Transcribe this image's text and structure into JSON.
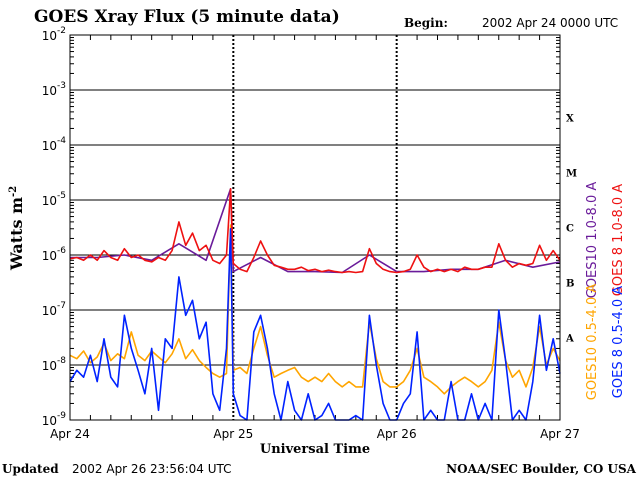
{
  "chart_data": {
    "type": "line",
    "title": "GOES Xray Flux (5 minute data)",
    "begin_label": "Begin:",
    "begin_value": "2002 Apr 24 0000 UTC",
    "ylabel": "Watts m",
    "ylabel_exp": "-2",
    "xlabel": "Universal Time",
    "yscale": "log",
    "ylim": [
      1e-09,
      0.01
    ],
    "y_ticks": [
      {
        "base": "10",
        "exp": "-2",
        "value": 0.01
      },
      {
        "base": "10",
        "exp": "-3",
        "value": 0.001
      },
      {
        "base": "10",
        "exp": "-4",
        "value": 0.0001
      },
      {
        "base": "10",
        "exp": "-5",
        "value": 1e-05
      },
      {
        "base": "10",
        "exp": "-6",
        "value": 1e-06
      },
      {
        "base": "10",
        "exp": "-7",
        "value": 1e-07
      },
      {
        "base": "10",
        "exp": "-8",
        "value": 1e-08
      },
      {
        "base": "10",
        "exp": "-9",
        "value": 1e-09
      }
    ],
    "xlim": [
      0,
      72
    ],
    "x_ticks": [
      {
        "label": "Apr 24",
        "hours": 0
      },
      {
        "label": "Apr 25",
        "hours": 24
      },
      {
        "label": "Apr 26",
        "hours": 48
      },
      {
        "label": "Apr 27",
        "hours": 72
      }
    ],
    "flare_classes": [
      {
        "label": "X",
        "value": 0.000316
      },
      {
        "label": "M",
        "value": 3.16e-05
      },
      {
        "label": "C",
        "value": 3.16e-06
      },
      {
        "label": "B",
        "value": 3.16e-07
      },
      {
        "label": "A",
        "value": 3.16e-08
      }
    ],
    "grid": true,
    "series": [
      {
        "name": "GOES10 0.5-4.0 A",
        "color": "#ffa500",
        "points": [
          [
            0,
            1.5e-08
          ],
          [
            1,
            1.3e-08
          ],
          [
            2,
            1.8e-08
          ],
          [
            3,
            1.1e-08
          ],
          [
            4,
            1.4e-08
          ],
          [
            5,
            2.5e-08
          ],
          [
            6,
            1.2e-08
          ],
          [
            7,
            1.6e-08
          ],
          [
            8,
            1.3e-08
          ],
          [
            9,
            4e-08
          ],
          [
            10,
            1.5e-08
          ],
          [
            11,
            1.2e-08
          ],
          [
            12,
            1.8e-08
          ],
          [
            13,
            1.4e-08
          ],
          [
            14,
            1.1e-08
          ],
          [
            15,
            1.6e-08
          ],
          [
            16,
            3e-08
          ],
          [
            17,
            1.3e-08
          ],
          [
            18,
            1.9e-08
          ],
          [
            19,
            1.2e-08
          ],
          [
            20,
            9e-09
          ],
          [
            21,
            7e-09
          ],
          [
            22,
            6e-09
          ],
          [
            23,
            7e-09
          ],
          [
            23.6,
            3.5e-06
          ],
          [
            24,
            8e-09
          ],
          [
            25,
            9e-09
          ],
          [
            26,
            7e-09
          ],
          [
            27,
            2e-08
          ],
          [
            28,
            5e-08
          ],
          [
            29,
            1.5e-08
          ],
          [
            30,
            6e-09
          ],
          [
            31,
            7e-09
          ],
          [
            32,
            8e-09
          ],
          [
            33,
            9e-09
          ],
          [
            34,
            6e-09
          ],
          [
            35,
            5e-09
          ],
          [
            36,
            6e-09
          ],
          [
            37,
            5e-09
          ],
          [
            38,
            7e-09
          ],
          [
            39,
            5e-09
          ],
          [
            40,
            4e-09
          ],
          [
            41,
            5e-09
          ],
          [
            42,
            4e-09
          ],
          [
            43,
            4e-09
          ],
          [
            44,
            6e-08
          ],
          [
            45,
            1.3e-08
          ],
          [
            46,
            5e-09
          ],
          [
            47,
            4e-09
          ],
          [
            48,
            4e-09
          ],
          [
            49,
            5e-09
          ],
          [
            50,
            8e-09
          ],
          [
            51,
            2e-08
          ],
          [
            52,
            6e-09
          ],
          [
            53,
            5e-09
          ],
          [
            54,
            4e-09
          ],
          [
            55,
            3e-09
          ],
          [
            56,
            4e-09
          ],
          [
            57,
            5e-09
          ],
          [
            58,
            6e-09
          ],
          [
            59,
            5e-09
          ],
          [
            60,
            4e-09
          ],
          [
            61,
            5e-09
          ],
          [
            62,
            8e-09
          ],
          [
            63,
            6e-08
          ],
          [
            64,
            1.2e-08
          ],
          [
            65,
            6e-09
          ],
          [
            66,
            8e-09
          ],
          [
            67,
            4e-09
          ],
          [
            68,
            9e-09
          ],
          [
            69,
            5e-08
          ],
          [
            70,
            1e-08
          ],
          [
            71,
            2e-08
          ],
          [
            72,
            1.2e-08
          ]
        ]
      },
      {
        "name": "GOES 8 0.5-4.0 A",
        "color": "#0022ff",
        "points": [
          [
            0,
            5e-09
          ],
          [
            1,
            8e-09
          ],
          [
            2,
            6e-09
          ],
          [
            3,
            1.5e-08
          ],
          [
            4,
            5e-09
          ],
          [
            5,
            3e-08
          ],
          [
            6,
            6e-09
          ],
          [
            7,
            4e-09
          ],
          [
            8,
            8e-08
          ],
          [
            9,
            2e-08
          ],
          [
            10,
            8e-09
          ],
          [
            11,
            3e-09
          ],
          [
            12,
            2e-08
          ],
          [
            13,
            1.5e-09
          ],
          [
            14,
            3e-08
          ],
          [
            15,
            2e-08
          ],
          [
            16,
            4e-07
          ],
          [
            17,
            8e-08
          ],
          [
            18,
            1.5e-07
          ],
          [
            19,
            3e-08
          ],
          [
            20,
            6e-08
          ],
          [
            21,
            3e-09
          ],
          [
            22,
            1.5e-09
          ],
          [
            23,
            2e-08
          ],
          [
            23.6,
            3e-06
          ],
          [
            24,
            3e-09
          ],
          [
            25,
            1.2e-09
          ],
          [
            26,
            1e-09
          ],
          [
            27,
            4e-08
          ],
          [
            28,
            8e-08
          ],
          [
            29,
            2e-08
          ],
          [
            30,
            3e-09
          ],
          [
            31,
            1e-09
          ],
          [
            32,
            5e-09
          ],
          [
            33,
            1.5e-09
          ],
          [
            34,
            1e-09
          ],
          [
            35,
            3e-09
          ],
          [
            36,
            1e-09
          ],
          [
            37,
            1.2e-09
          ],
          [
            38,
            2e-09
          ],
          [
            39,
            1e-09
          ],
          [
            40,
            1e-09
          ],
          [
            41,
            1e-09
          ],
          [
            42,
            1.2e-09
          ],
          [
            43,
            1e-09
          ],
          [
            44,
            8e-08
          ],
          [
            45,
            1e-08
          ],
          [
            46,
            2e-09
          ],
          [
            47,
            1e-09
          ],
          [
            48,
            1e-09
          ],
          [
            49,
            2e-09
          ],
          [
            50,
            3e-09
          ],
          [
            51,
            4e-08
          ],
          [
            52,
            1e-09
          ],
          [
            53,
            1.5e-09
          ],
          [
            54,
            1e-09
          ],
          [
            55,
            1e-09
          ],
          [
            56,
            5e-09
          ],
          [
            57,
            1e-09
          ],
          [
            58,
            1e-09
          ],
          [
            59,
            3e-09
          ],
          [
            60,
            1e-09
          ],
          [
            61,
            2e-09
          ],
          [
            62,
            1e-09
          ],
          [
            63,
            1e-07
          ],
          [
            64,
            1.2e-08
          ],
          [
            65,
            1e-09
          ],
          [
            66,
            1.5e-09
          ],
          [
            67,
            1e-09
          ],
          [
            68,
            5e-09
          ],
          [
            69,
            8e-08
          ],
          [
            70,
            8e-09
          ],
          [
            71,
            3e-08
          ],
          [
            72,
            7e-09
          ]
        ]
      },
      {
        "name": "GOES10 1.0-8.0 A",
        "color": "#6a1b9a",
        "points": [
          [
            0,
            9e-07
          ],
          [
            4,
            9e-07
          ],
          [
            8,
            1e-06
          ],
          [
            12,
            8e-07
          ],
          [
            16,
            1.6e-06
          ],
          [
            20,
            8e-07
          ],
          [
            23.6,
            1.6e-05
          ],
          [
            24,
            5e-07
          ],
          [
            28,
            9e-07
          ],
          [
            32,
            5e-07
          ],
          [
            36,
            5e-07
          ],
          [
            40,
            4.8e-07
          ],
          [
            44,
            1e-06
          ],
          [
            48,
            5e-07
          ],
          [
            52,
            5e-07
          ],
          [
            56,
            5.5e-07
          ],
          [
            60,
            5.5e-07
          ],
          [
            64,
            8e-07
          ],
          [
            68,
            6e-07
          ],
          [
            72,
            7.5e-07
          ]
        ]
      },
      {
        "name": "GOES 8 1.0-8.0 A",
        "color": "#ee1111",
        "points": [
          [
            0,
            8.5e-07
          ],
          [
            1,
            9e-07
          ],
          [
            2,
            8e-07
          ],
          [
            3,
            1e-06
          ],
          [
            4,
            8e-07
          ],
          [
            5,
            1.2e-06
          ],
          [
            6,
            9e-07
          ],
          [
            7,
            8e-07
          ],
          [
            8,
            1.3e-06
          ],
          [
            9,
            9e-07
          ],
          [
            10,
            1e-06
          ],
          [
            11,
            8e-07
          ],
          [
            12,
            7.5e-07
          ],
          [
            13,
            9e-07
          ],
          [
            14,
            8e-07
          ],
          [
            15,
            1.2e-06
          ],
          [
            16,
            4e-06
          ],
          [
            17,
            1.5e-06
          ],
          [
            18,
            2.5e-06
          ],
          [
            19,
            1.2e-06
          ],
          [
            20,
            1.5e-06
          ],
          [
            21,
            8e-07
          ],
          [
            22,
            7e-07
          ],
          [
            23,
            1e-06
          ],
          [
            23.6,
            1.6e-05
          ],
          [
            24,
            7e-07
          ],
          [
            25,
            5.5e-07
          ],
          [
            26,
            5e-07
          ],
          [
            27,
            9e-07
          ],
          [
            28,
            1.8e-06
          ],
          [
            29,
            1e-06
          ],
          [
            30,
            6.5e-07
          ],
          [
            31,
            6e-07
          ],
          [
            32,
            5.5e-07
          ],
          [
            33,
            5.5e-07
          ],
          [
            34,
            6e-07
          ],
          [
            35,
            5.2e-07
          ],
          [
            36,
            5.5e-07
          ],
          [
            37,
            5e-07
          ],
          [
            38,
            5.3e-07
          ],
          [
            39,
            5e-07
          ],
          [
            40,
            4.8e-07
          ],
          [
            41,
            5e-07
          ],
          [
            42,
            4.8e-07
          ],
          [
            43,
            5e-07
          ],
          [
            44,
            1.3e-06
          ],
          [
            45,
            7e-07
          ],
          [
            46,
            5.5e-07
          ],
          [
            47,
            5e-07
          ],
          [
            48,
            4.8e-07
          ],
          [
            49,
            5e-07
          ],
          [
            50,
            5.5e-07
          ],
          [
            51,
            1e-06
          ],
          [
            52,
            6e-07
          ],
          [
            53,
            5e-07
          ],
          [
            54,
            5.5e-07
          ],
          [
            55,
            5e-07
          ],
          [
            56,
            5.5e-07
          ],
          [
            57,
            5e-07
          ],
          [
            58,
            6e-07
          ],
          [
            59,
            5.5e-07
          ],
          [
            60,
            5.5e-07
          ],
          [
            61,
            6e-07
          ],
          [
            62,
            6e-07
          ],
          [
            63,
            1.6e-06
          ],
          [
            64,
            8e-07
          ],
          [
            65,
            6e-07
          ],
          [
            66,
            7e-07
          ],
          [
            67,
            6.5e-07
          ],
          [
            68,
            7e-07
          ],
          [
            69,
            1.5e-06
          ],
          [
            70,
            8e-07
          ],
          [
            71,
            1.2e-06
          ],
          [
            72,
            8e-07
          ]
        ]
      }
    ]
  },
  "footer": {
    "updated_label": "Updated",
    "updated_value": "2002 Apr 26 23:56:04 UTC",
    "credit": "NOAA/SEC Boulder, CO USA"
  }
}
